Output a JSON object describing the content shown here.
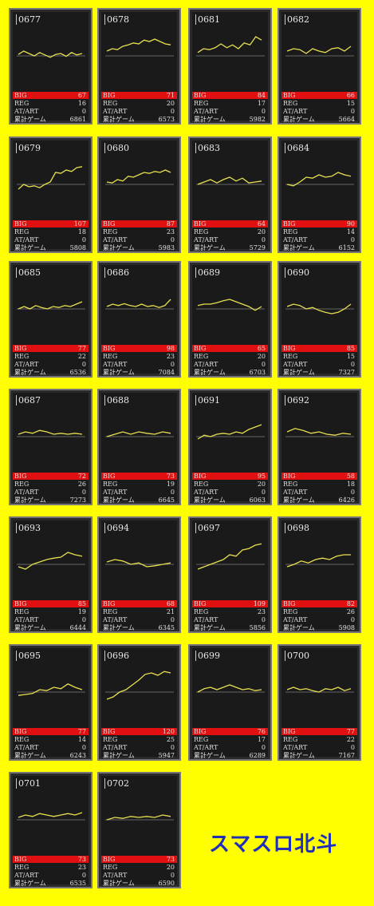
{
  "page": {
    "title": "スマスロ北斗"
  },
  "labels": {
    "big": "BIG",
    "reg": "REG",
    "at": "AT/ART",
    "games": "累計ゲーム"
  },
  "colors": {
    "background": "#ffff00",
    "card": "#1a1a1a",
    "big_bar": "#e01010",
    "graph_line": "#e8e050",
    "title": "#1f2fb8"
  },
  "machines": [
    {
      "id": "0677",
      "big": 67,
      "reg": 16,
      "at": 0,
      "games": 6861,
      "trend": [
        0.52,
        0.45,
        0.5,
        0.55,
        0.48,
        0.53,
        0.58,
        0.52,
        0.5,
        0.56,
        0.48,
        0.53,
        0.5
      ]
    },
    {
      "id": "0678",
      "big": 71,
      "reg": 20,
      "at": 0,
      "games": 6573,
      "trend": [
        0.45,
        0.4,
        0.42,
        0.35,
        0.32,
        0.28,
        0.3,
        0.22,
        0.25,
        0.2,
        0.25,
        0.3,
        0.32
      ]
    },
    {
      "id": "0681",
      "big": 84,
      "reg": 17,
      "at": 0,
      "games": 5982,
      "trend": [
        0.48,
        0.4,
        0.42,
        0.38,
        0.3,
        0.38,
        0.32,
        0.4,
        0.28,
        0.32,
        0.15,
        0.22
      ]
    },
    {
      "id": "0682",
      "big": 66,
      "reg": 15,
      "at": 0,
      "games": 5664,
      "trend": [
        0.45,
        0.4,
        0.42,
        0.5,
        0.4,
        0.45,
        0.48,
        0.4,
        0.38,
        0.45,
        0.35
      ]
    },
    {
      "id": "0679",
      "big": 107,
      "reg": 18,
      "at": 0,
      "games": 5808,
      "trend": [
        0.65,
        0.55,
        0.6,
        0.58,
        0.62,
        0.55,
        0.5,
        0.3,
        0.32,
        0.25,
        0.28,
        0.2,
        0.18
      ]
    },
    {
      "id": "0680",
      "big": 87,
      "reg": 23,
      "at": 0,
      "games": 5983,
      "trend": [
        0.5,
        0.52,
        0.45,
        0.48,
        0.38,
        0.4,
        0.35,
        0.3,
        0.32,
        0.28,
        0.3,
        0.25,
        0.3
      ]
    },
    {
      "id": "0683",
      "big": 64,
      "reg": 20,
      "at": 0,
      "games": 5729,
      "trend": [
        0.55,
        0.5,
        0.45,
        0.52,
        0.45,
        0.4,
        0.48,
        0.42,
        0.52,
        0.5,
        0.48
      ]
    },
    {
      "id": "0684",
      "big": 90,
      "reg": 14,
      "at": 0,
      "games": 6152,
      "trend": [
        0.55,
        0.58,
        0.5,
        0.4,
        0.42,
        0.35,
        0.4,
        0.38,
        0.3,
        0.35,
        0.38
      ]
    },
    {
      "id": "0685",
      "big": 77,
      "reg": 22,
      "at": 0,
      "games": 6536,
      "trend": [
        0.55,
        0.5,
        0.55,
        0.48,
        0.52,
        0.55,
        0.5,
        0.52,
        0.48,
        0.5,
        0.45,
        0.4
      ]
    },
    {
      "id": "0686",
      "big": 98,
      "reg": 23,
      "at": 0,
      "games": 7084,
      "trend": [
        0.5,
        0.45,
        0.48,
        0.44,
        0.48,
        0.5,
        0.45,
        0.5,
        0.48,
        0.52,
        0.48,
        0.35
      ]
    },
    {
      "id": "0689",
      "big": 65,
      "reg": 20,
      "at": 0,
      "games": 6703,
      "trend": [
        0.48,
        0.45,
        0.45,
        0.42,
        0.38,
        0.35,
        0.4,
        0.45,
        0.5,
        0.58,
        0.5
      ]
    },
    {
      "id": "0690",
      "big": 85,
      "reg": 15,
      "at": 0,
      "games": 7327,
      "trend": [
        0.5,
        0.45,
        0.48,
        0.55,
        0.52,
        0.58,
        0.62,
        0.65,
        0.62,
        0.55,
        0.45
      ]
    },
    {
      "id": "0687",
      "big": 72,
      "reg": 26,
      "at": 0,
      "games": 7273,
      "trend": [
        0.5,
        0.45,
        0.48,
        0.42,
        0.45,
        0.5,
        0.48,
        0.5,
        0.48,
        0.5
      ]
    },
    {
      "id": "0688",
      "big": 73,
      "reg": 19,
      "at": 0,
      "games": 6645,
      "trend": [
        0.55,
        0.5,
        0.45,
        0.5,
        0.45,
        0.48,
        0.5,
        0.45,
        0.48
      ]
    },
    {
      "id": "0691",
      "big": 95,
      "reg": 20,
      "at": 0,
      "games": 6063,
      "trend": [
        0.6,
        0.52,
        0.55,
        0.5,
        0.48,
        0.5,
        0.45,
        0.48,
        0.4,
        0.35,
        0.3
      ]
    },
    {
      "id": "0692",
      "big": 58,
      "reg": 18,
      "at": 0,
      "games": 6426,
      "trend": [
        0.45,
        0.38,
        0.42,
        0.48,
        0.45,
        0.5,
        0.52,
        0.48,
        0.5
      ]
    },
    {
      "id": "0693",
      "big": 85,
      "reg": 19,
      "at": 0,
      "games": 6444,
      "trend": [
        0.6,
        0.65,
        0.55,
        0.5,
        0.45,
        0.42,
        0.4,
        0.3,
        0.35,
        0.38
      ]
    },
    {
      "id": "0694",
      "big": 68,
      "reg": 21,
      "at": 0,
      "games": 6345,
      "trend": [
        0.5,
        0.45,
        0.48,
        0.55,
        0.52,
        0.6,
        0.58,
        0.55,
        0.52
      ]
    },
    {
      "id": "0697",
      "big": 109,
      "reg": 23,
      "at": 0,
      "games": 5856,
      "trend": [
        0.65,
        0.6,
        0.55,
        0.5,
        0.45,
        0.35,
        0.38,
        0.25,
        0.22,
        0.15,
        0.12
      ]
    },
    {
      "id": "0698",
      "big": 82,
      "reg": 26,
      "at": 0,
      "games": 5908,
      "trend": [
        0.6,
        0.55,
        0.48,
        0.52,
        0.45,
        0.42,
        0.45,
        0.38,
        0.35,
        0.35
      ]
    },
    {
      "id": "0695",
      "big": 77,
      "reg": 14,
      "at": 0,
      "games": 6243,
      "trend": [
        0.62,
        0.6,
        0.58,
        0.5,
        0.52,
        0.45,
        0.48,
        0.38,
        0.45,
        0.5
      ]
    },
    {
      "id": "0696",
      "big": 120,
      "reg": 25,
      "at": 0,
      "games": 5947,
      "trend": [
        0.7,
        0.65,
        0.55,
        0.5,
        0.4,
        0.3,
        0.18,
        0.15,
        0.2,
        0.12,
        0.15
      ]
    },
    {
      "id": "0699",
      "big": 76,
      "reg": 17,
      "at": 0,
      "games": 6289,
      "trend": [
        0.55,
        0.48,
        0.45,
        0.5,
        0.45,
        0.4,
        0.45,
        0.5,
        0.48,
        0.52,
        0.5
      ]
    },
    {
      "id": "0700",
      "big": 77,
      "reg": 22,
      "at": 0,
      "games": 7167,
      "trend": [
        0.5,
        0.45,
        0.5,
        0.48,
        0.52,
        0.55,
        0.48,
        0.5,
        0.45,
        0.52,
        0.48
      ]
    },
    {
      "id": "0701",
      "big": 73,
      "reg": 23,
      "at": 0,
      "games": 6535,
      "trend": [
        0.5,
        0.45,
        0.48,
        0.42,
        0.45,
        0.48,
        0.45,
        0.42,
        0.45,
        0.4
      ]
    },
    {
      "id": "0702",
      "big": 73,
      "reg": 20,
      "at": 0,
      "games": 6590,
      "trend": [
        0.55,
        0.5,
        0.52,
        0.48,
        0.5,
        0.48,
        0.5,
        0.45,
        0.48
      ]
    }
  ]
}
